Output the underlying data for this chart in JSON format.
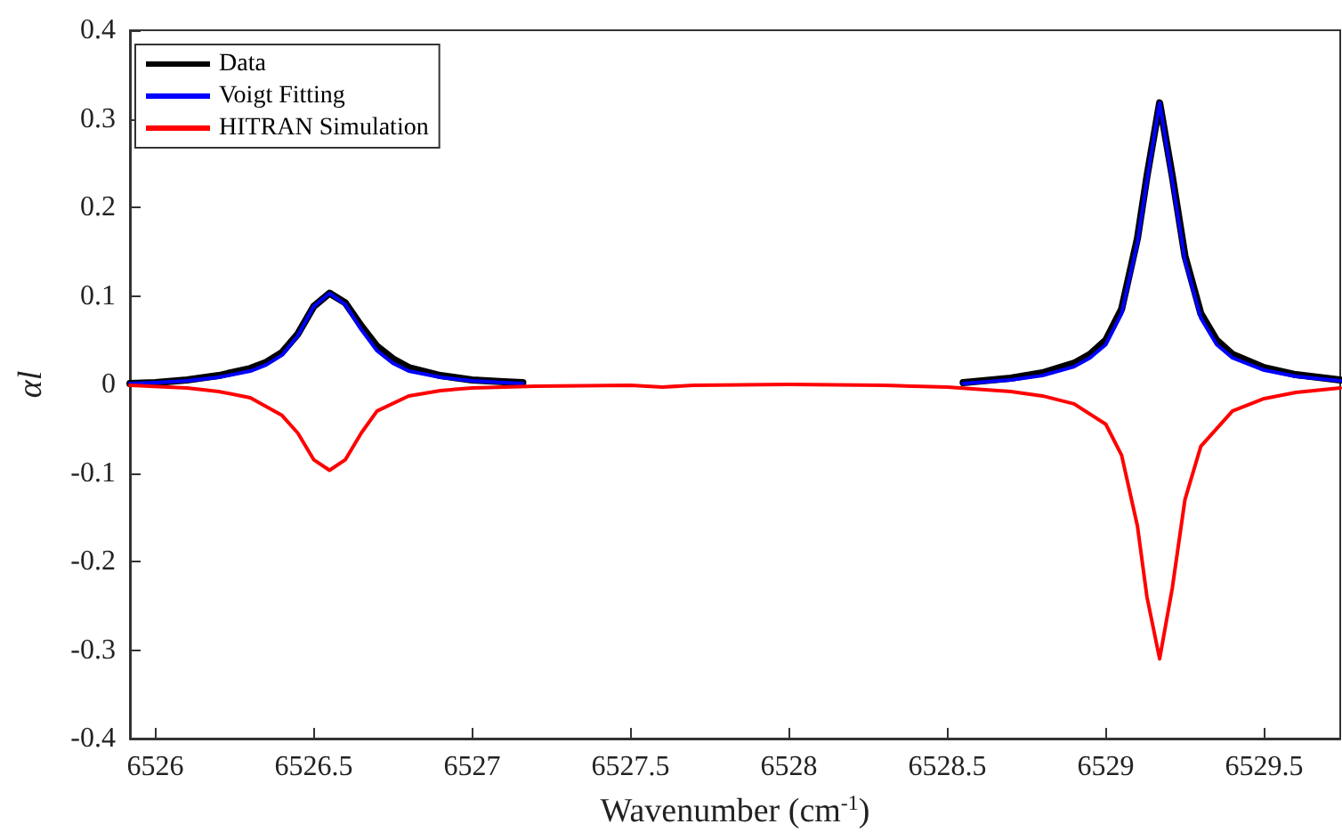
{
  "chart_data": {
    "type": "line",
    "xlabel": "Wavenumber (cm$^{-1}$)",
    "ylabel": "αl",
    "legend": "top left",
    "xlim": [
      6525.92,
      6529.74
    ],
    "xticks": [
      6526,
      6526.5,
      6527,
      6527.5,
      6528,
      6528.5,
      6529,
      6529.5
    ],
    "ylim": [
      -0.4,
      0.4
    ],
    "yticks": [
      -0.4,
      -0.3,
      -0.2,
      -0.1,
      0,
      0.1,
      0.2,
      0.3,
      0.4
    ],
    "series": [
      {
        "name": "Data",
        "color": "#000000",
        "x": [
          6525.92,
          6526.0,
          6526.1,
          6526.2,
          6526.3,
          6526.35,
          6526.4,
          6526.45,
          6526.5,
          6526.55,
          6526.6,
          6526.65,
          6526.7,
          6526.75,
          6526.8,
          6526.9,
          6527.0,
          6527.1,
          6527.16,
          null,
          6528.55,
          6528.7,
          6528.8,
          6528.9,
          6528.95,
          6529.0,
          6529.05,
          6529.1,
          6529.13,
          6529.17,
          6529.21,
          6529.25,
          6529.3,
          6529.35,
          6529.4,
          6529.5,
          6529.6,
          6529.74
        ],
        "values": [
          0.001,
          0.002,
          0.005,
          0.01,
          0.018,
          0.025,
          0.036,
          0.057,
          0.088,
          0.103,
          0.092,
          0.066,
          0.043,
          0.029,
          0.019,
          0.01,
          0.005,
          0.003,
          0.002,
          null,
          0.002,
          0.007,
          0.013,
          0.024,
          0.034,
          0.05,
          0.085,
          0.165,
          0.235,
          0.318,
          0.235,
          0.145,
          0.08,
          0.05,
          0.034,
          0.019,
          0.011,
          0.005
        ]
      },
      {
        "name": "Voigt Fitting",
        "color": "#0000ff",
        "x": [
          6525.92,
          6526.0,
          6526.1,
          6526.2,
          6526.3,
          6526.35,
          6526.4,
          6526.45,
          6526.5,
          6526.55,
          6526.6,
          6526.65,
          6526.7,
          6526.75,
          6526.8,
          6526.9,
          6527.0,
          6527.1,
          6527.16,
          null,
          6528.55,
          6528.7,
          6528.8,
          6528.9,
          6528.95,
          6529.0,
          6529.05,
          6529.1,
          6529.13,
          6529.17,
          6529.21,
          6529.25,
          6529.3,
          6529.35,
          6529.4,
          6529.5,
          6529.6,
          6529.74
        ],
        "values": [
          0.001,
          0.002,
          0.004,
          0.008,
          0.015,
          0.022,
          0.033,
          0.055,
          0.088,
          0.103,
          0.09,
          0.062,
          0.038,
          0.024,
          0.015,
          0.008,
          0.004,
          0.002,
          0.001,
          null,
          0.001,
          0.005,
          0.01,
          0.02,
          0.03,
          0.045,
          0.08,
          0.16,
          0.23,
          0.318,
          0.23,
          0.14,
          0.075,
          0.045,
          0.03,
          0.016,
          0.009,
          0.004
        ]
      },
      {
        "name": "HITRAN Simulation",
        "color": "#ff0000",
        "x": [
          6525.92,
          6526.1,
          6526.2,
          6526.3,
          6526.4,
          6526.45,
          6526.5,
          6526.55,
          6526.6,
          6526.65,
          6526.7,
          6526.8,
          6526.9,
          6527.0,
          6527.2,
          6527.5,
          6527.6,
          6527.7,
          6528.0,
          6528.3,
          6528.5,
          6528.7,
          6528.8,
          6528.9,
          6529.0,
          6529.05,
          6529.1,
          6529.13,
          6529.17,
          6529.21,
          6529.25,
          6529.3,
          6529.4,
          6529.5,
          6529.6,
          6529.74
        ],
        "values": [
          -0.001,
          -0.004,
          -0.008,
          -0.015,
          -0.035,
          -0.055,
          -0.085,
          -0.097,
          -0.085,
          -0.055,
          -0.03,
          -0.013,
          -0.007,
          -0.004,
          -0.002,
          -0.001,
          -0.003,
          -0.001,
          0,
          -0.001,
          -0.003,
          -0.008,
          -0.013,
          -0.022,
          -0.045,
          -0.08,
          -0.16,
          -0.24,
          -0.31,
          -0.23,
          -0.13,
          -0.07,
          -0.03,
          -0.016,
          -0.009,
          -0.004
        ]
      }
    ]
  }
}
